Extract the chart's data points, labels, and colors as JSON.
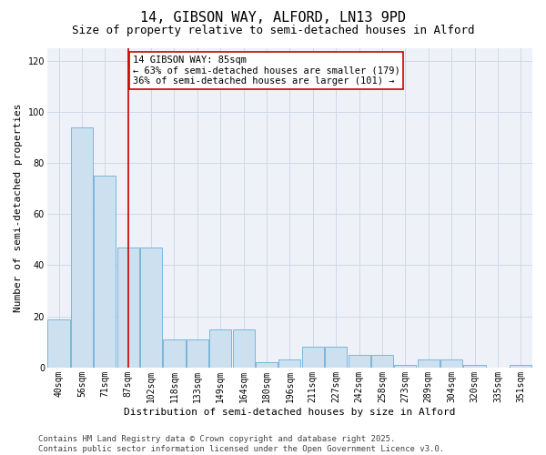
{
  "title": "14, GIBSON WAY, ALFORD, LN13 9PD",
  "subtitle": "Size of property relative to semi-detached houses in Alford",
  "xlabel": "Distribution of semi-detached houses by size in Alford",
  "ylabel": "Number of semi-detached properties",
  "categories": [
    "40sqm",
    "56sqm",
    "71sqm",
    "87sqm",
    "102sqm",
    "118sqm",
    "133sqm",
    "149sqm",
    "164sqm",
    "180sqm",
    "196sqm",
    "211sqm",
    "227sqm",
    "242sqm",
    "258sqm",
    "273sqm",
    "289sqm",
    "304sqm",
    "320sqm",
    "335sqm",
    "351sqm"
  ],
  "values": [
    19,
    94,
    75,
    47,
    47,
    11,
    11,
    15,
    15,
    2,
    3,
    8,
    8,
    5,
    5,
    1,
    3,
    3,
    1,
    0,
    1
  ],
  "bar_color": "#cde0f0",
  "bar_edge_color": "#6aaed6",
  "vline_x": 3,
  "annotation_text": "14 GIBSON WAY: 85sqm\n← 63% of semi-detached houses are smaller (179)\n36% of semi-detached houses are larger (101) →",
  "annotation_box_color": "#ffffff",
  "annotation_box_edge_color": "#cc0000",
  "ylim": [
    0,
    125
  ],
  "yticks": [
    0,
    20,
    40,
    60,
    80,
    100,
    120
  ],
  "grid_color": "#d0d8e8",
  "bg_color": "#eef2f8",
  "footer_line1": "Contains HM Land Registry data © Crown copyright and database right 2025.",
  "footer_line2": "Contains public sector information licensed under the Open Government Licence v3.0.",
  "title_fontsize": 11,
  "subtitle_fontsize": 9,
  "axis_label_fontsize": 8,
  "tick_fontsize": 7,
  "annotation_fontsize": 7.5,
  "footer_fontsize": 6.5
}
